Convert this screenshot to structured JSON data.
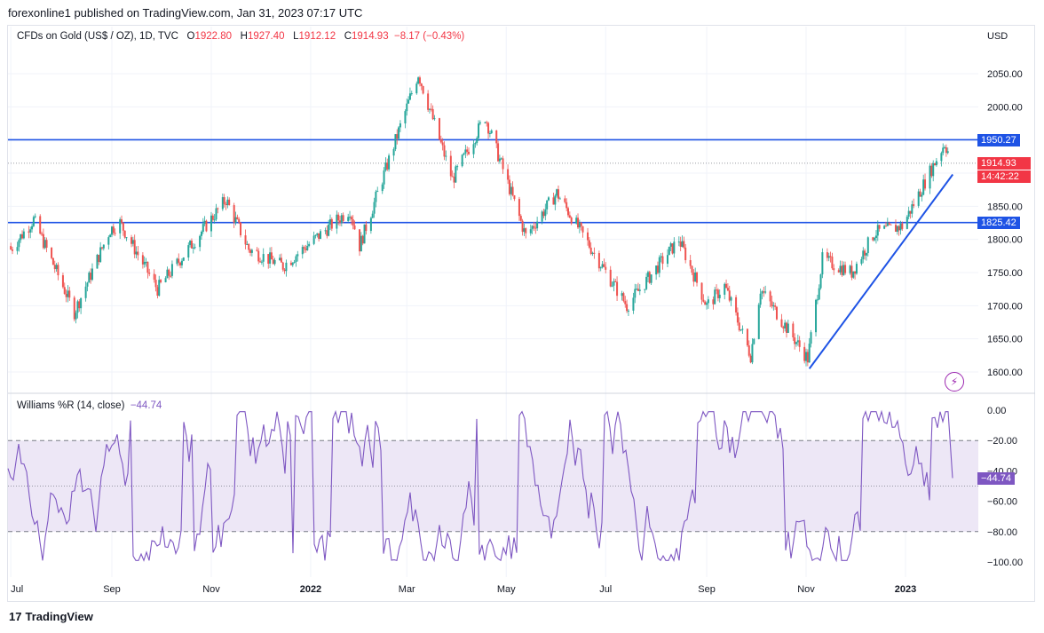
{
  "publisher": "forexonline1 published on TradingView.com, Jan 31, 2023 07:17 UTC",
  "symbol": {
    "name": "CFDs on Gold (US$ / OZ), 1D, TVC",
    "o_label": "O",
    "o": "1922.80",
    "h_label": "H",
    "h": "1927.40",
    "l_label": "L",
    "l": "1912.12",
    "c_label": "C",
    "c": "1914.93",
    "change": "−8.17 (−0.43%)"
  },
  "currency": "USD",
  "price_tags": {
    "resistance": "1950.27",
    "support": "1825.42",
    "last": "1914.93",
    "countdown": "14:42:22",
    "indicator": "−44.74"
  },
  "indicator": {
    "name": "Williams %R (14, close)",
    "value": "−44.74"
  },
  "footer": {
    "logo_mark": "17",
    "logo_text": "TradingView"
  },
  "icons": {
    "alert": "lightning-icon",
    "logo": "tradingview-logo-icon"
  },
  "colors": {
    "up": "#26a69a",
    "down": "#ef5350",
    "level_line": "#1e53e5",
    "last_price": "#f23645",
    "indicator_line": "#7e57c2",
    "indicator_band": "#ede7f6",
    "level_tag": "#1e53e5"
  },
  "chart_data": [
    {
      "type": "candlestick",
      "title": "CFDs on Gold (US$ / OZ), 1D, TVC",
      "x_ticks": [
        "Jul",
        "Sep",
        "Nov",
        "2022",
        "Mar",
        "May",
        "Jul",
        "Sep",
        "Nov",
        "2023"
      ],
      "y_ticks": [
        1600,
        1650,
        1700,
        1750,
        1800,
        1850,
        1900,
        1950,
        2000,
        2050
      ],
      "ylim": [
        1590,
        2085
      ],
      "grid": true,
      "horizontal_levels": [
        1950.27,
        1825.42
      ],
      "last_price": 1914.93,
      "trendline": {
        "from": [
          "2022-11-03",
          1605
        ],
        "to": [
          "2023-01-30",
          1898
        ]
      },
      "x": [
        "2021-07",
        "2021-08",
        "2021-09",
        "2021-10",
        "2021-11",
        "2021-12",
        "2022-01",
        "2022-02",
        "2022-03",
        "2022-04",
        "2022-05",
        "2022-06",
        "2022-07",
        "2022-08",
        "2022-09",
        "2022-10",
        "2022-11",
        "2022-12",
        "2023-01"
      ],
      "close": [
        1814,
        1813,
        1757,
        1783,
        1774,
        1829,
        1797,
        1908,
        1937,
        1897,
        1837,
        1807,
        1766,
        1711,
        1660,
        1633,
        1768,
        1824,
        1915
      ]
    },
    {
      "type": "line",
      "title": "Williams %R (14, close)",
      "y_ticks": [
        "0.00",
        "−20.00",
        "−40.00",
        "−60.00",
        "−80.00",
        "−100.00"
      ],
      "ylim": [
        -103,
        3
      ],
      "band": [
        -80,
        -20
      ],
      "last": -44.74
    }
  ]
}
